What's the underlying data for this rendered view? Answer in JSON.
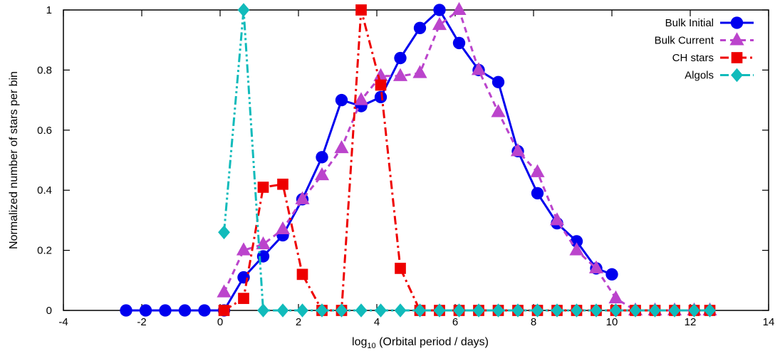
{
  "chart_data": {
    "type": "line",
    "xlabel_main": "log",
    "xlabel_sub": "10",
    "xlabel_rest": " (Orbital period / days)",
    "ylabel": "Normalized number of stars per bin",
    "xlim": [
      -4,
      14
    ],
    "ylim": [
      0,
      1
    ],
    "xticks": [
      -4,
      -2,
      0,
      2,
      4,
      6,
      8,
      10,
      12,
      14
    ],
    "yticks": [
      0,
      0.2,
      0.4,
      0.6,
      0.8,
      1
    ],
    "ytick_labels": [
      "0",
      "0.2",
      "0.4",
      "0.6",
      "0.8",
      "1"
    ],
    "grid": false,
    "legend_position": "top-right",
    "series": [
      {
        "name": "Bulk Initial",
        "color": "#0000ee",
        "marker": "circle",
        "dash": "solid",
        "x": [
          -2.4,
          -1.9,
          -1.4,
          -0.9,
          -0.4,
          0.1,
          0.6,
          1.1,
          1.6,
          2.1,
          2.6,
          3.1,
          3.6,
          4.1,
          4.6,
          5.1,
          5.6,
          6.1,
          6.6,
          7.1,
          7.6,
          8.1,
          8.6,
          9.1,
          9.6,
          10.0
        ],
        "y": [
          0,
          0,
          0,
          0,
          0,
          0,
          0.11,
          0.18,
          0.25,
          0.37,
          0.51,
          0.7,
          0.68,
          0.71,
          0.84,
          0.94,
          1.0,
          0.89,
          0.8,
          0.76,
          0.53,
          0.39,
          0.29,
          0.23,
          0.14,
          0.12
        ]
      },
      {
        "name": "Bulk Current",
        "color": "#bb44cc",
        "marker": "triangle",
        "dash": "dashed",
        "x": [
          0.1,
          0.6,
          1.1,
          1.6,
          2.1,
          2.6,
          3.1,
          3.6,
          4.1,
          4.6,
          5.1,
          5.6,
          6.1,
          6.6,
          7.1,
          7.6,
          8.1,
          8.6,
          9.1,
          9.6,
          10.1,
          10.6,
          11.1,
          11.6,
          12.1,
          12.5
        ],
        "y": [
          0.06,
          0.2,
          0.22,
          0.27,
          0.37,
          0.45,
          0.54,
          0.7,
          0.78,
          0.78,
          0.79,
          0.95,
          1.0,
          0.8,
          0.66,
          0.53,
          0.46,
          0.3,
          0.2,
          0.14,
          0.04,
          0,
          0,
          0,
          0,
          0
        ]
      },
      {
        "name": "CH stars",
        "color": "#ee0000",
        "marker": "square",
        "dash": "dashdot",
        "x": [
          0.1,
          0.6,
          1.1,
          1.6,
          2.1,
          2.6,
          3.1,
          3.6,
          4.1,
          4.6,
          5.1,
          5.6,
          6.1,
          6.6,
          7.1,
          7.6,
          8.1,
          8.6,
          9.1,
          9.6,
          10.1,
          10.6,
          11.1,
          11.6,
          12.1,
          12.5
        ],
        "y": [
          0,
          0.04,
          0.41,
          0.42,
          0.12,
          0,
          0,
          1.0,
          0.75,
          0.14,
          0,
          0,
          0,
          0,
          0,
          0,
          0,
          0,
          0,
          0,
          0,
          0,
          0,
          0,
          0,
          0
        ]
      },
      {
        "name": "Algols",
        "color": "#11bbbb",
        "marker": "diamond",
        "dash": "dashdotdot",
        "x": [
          0.1,
          0.6,
          1.1,
          1.6,
          2.1,
          2.6,
          3.1,
          3.6,
          4.1,
          4.6,
          5.1,
          5.6,
          6.1,
          6.6,
          7.1,
          7.6,
          8.1,
          8.6,
          9.1,
          9.6,
          10.1,
          10.6,
          11.1,
          11.6,
          12.1,
          12.5
        ],
        "y": [
          0.26,
          1.0,
          0,
          0,
          0,
          0,
          0,
          0,
          0,
          0,
          0,
          0,
          0,
          0,
          0,
          0,
          0,
          0,
          0,
          0,
          0,
          0,
          0,
          0,
          0,
          0
        ]
      }
    ]
  }
}
